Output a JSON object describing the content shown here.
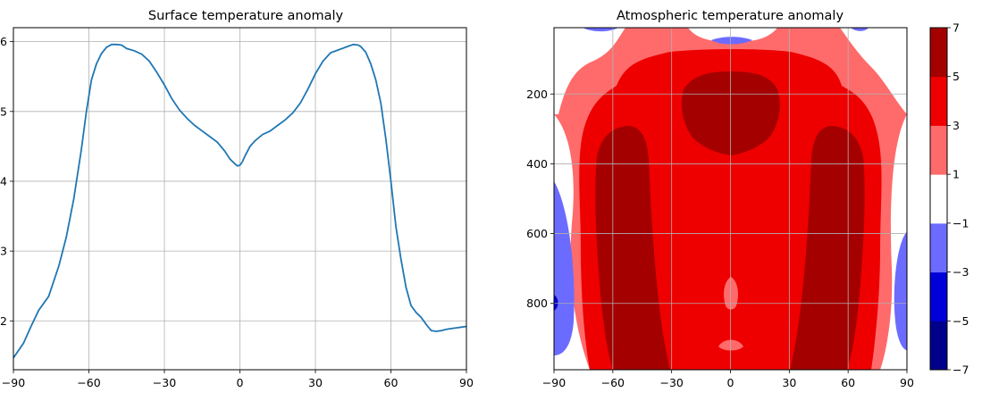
{
  "chart_data": [
    {
      "type": "line",
      "title": "Surface temperature anomaly",
      "xlabel": "",
      "ylabel": "",
      "xlim": [
        -90,
        90
      ],
      "ylim": [
        1.3,
        6.2
      ],
      "xticks": [
        -90,
        -60,
        -30,
        0,
        30,
        60,
        90
      ],
      "xtick_labels": [
        "−90",
        "−60",
        "−30",
        "0",
        "30",
        "60",
        "90"
      ],
      "yticks": [
        2,
        3,
        4,
        5,
        6
      ],
      "ytick_labels": [
        "2",
        "3",
        "4",
        "5",
        "6"
      ],
      "grid": true,
      "line_color": "#1f77b4",
      "series": [
        {
          "x": [
            -90,
            -86,
            -83,
            -80,
            -76,
            -72,
            -69,
            -66,
            -63,
            -61,
            -59,
            -57,
            -55,
            -53,
            -51,
            -49,
            -47,
            -45,
            -42,
            -39,
            -36,
            -33,
            -30,
            -27,
            -24,
            -21,
            -18,
            -15,
            -12,
            -9,
            -6,
            -4,
            -2,
            -1,
            0,
            1,
            2,
            4,
            6,
            9,
            12,
            15,
            18,
            21,
            24,
            27,
            30,
            33,
            36,
            39,
            42,
            45,
            47,
            48,
            50,
            52,
            54,
            56,
            58,
            60,
            62,
            64,
            66,
            68,
            70,
            72,
            74,
            76,
            78,
            80,
            82,
            84,
            86,
            88,
            90
          ],
          "y": [
            1.47,
            1.68,
            1.92,
            2.15,
            2.35,
            2.78,
            3.2,
            3.75,
            4.45,
            5.0,
            5.45,
            5.68,
            5.83,
            5.92,
            5.96,
            5.96,
            5.95,
            5.9,
            5.87,
            5.82,
            5.72,
            5.56,
            5.38,
            5.18,
            5.02,
            4.9,
            4.8,
            4.72,
            4.64,
            4.56,
            4.43,
            4.32,
            4.25,
            4.22,
            4.23,
            4.28,
            4.36,
            4.5,
            4.58,
            4.67,
            4.72,
            4.8,
            4.88,
            4.98,
            5.12,
            5.32,
            5.54,
            5.72,
            5.84,
            5.88,
            5.92,
            5.96,
            5.95,
            5.93,
            5.85,
            5.68,
            5.45,
            5.12,
            4.6,
            4.0,
            3.35,
            2.88,
            2.48,
            2.22,
            2.12,
            2.05,
            1.95,
            1.86,
            1.85,
            1.86,
            1.88,
            1.89,
            1.9,
            1.91,
            1.92
          ]
        }
      ]
    },
    {
      "type": "heatmap",
      "subtype": "filled_contour",
      "title": "Atmospheric temperature anomaly",
      "xlabel": "",
      "ylabel": "",
      "xlim": [
        -90,
        90
      ],
      "ylim": [
        1000,
        0
      ],
      "y_inverted": true,
      "xticks": [
        -90,
        -60,
        -30,
        0,
        30,
        60,
        90
      ],
      "xtick_labels": [
        "−90",
        "−60",
        "−30",
        "0",
        "30",
        "60",
        "90"
      ],
      "yticks": [
        200,
        400,
        600,
        800
      ],
      "ytick_labels": [
        "200",
        "400",
        "600",
        "800"
      ],
      "grid": true,
      "colorbar": {
        "levels": [
          -7,
          -5,
          -3,
          -1,
          1,
          3,
          5,
          7
        ],
        "labels": [
          "−7",
          "−5",
          "−3",
          "−1",
          "1",
          "3",
          "5",
          "7"
        ],
        "colors": [
          "#00008b",
          "#0000d8",
          "#6b6bff",
          "#ffffff",
          "#ff6b6b",
          "#ee0000",
          "#a50000"
        ]
      },
      "regions": [
        {
          "level": "1 to 3",
          "x": [
            -90,
            90
          ],
          "p": [
            15,
            990
          ]
        },
        {
          "level": "3 to 5",
          "x": [
            -73,
            73
          ],
          "p": [
            60,
            990
          ]
        },
        {
          "level": ">5",
          "x": [
            -17,
            17
          ],
          "p": [
            85,
            335
          ]
        },
        {
          "level": ">5",
          "x": [
            -66,
            -43
          ],
          "p": [
            285,
            990
          ]
        },
        {
          "level": ">5",
          "x": [
            43,
            66
          ],
          "p": [
            285,
            990
          ]
        },
        {
          "level": "-1 to 1",
          "x": [
            -90,
            -76
          ],
          "p": [
            20,
            640
          ]
        },
        {
          "level": "-1 to 1",
          "x": [
            76,
            90
          ],
          "p": [
            20,
            640
          ]
        },
        {
          "level": "-3 to -1",
          "x": [
            -90,
            -80
          ],
          "p": [
            440,
            950
          ]
        },
        {
          "level": "-3 to -1",
          "x": [
            80,
            90
          ],
          "p": [
            590,
            940
          ]
        },
        {
          "level": "-5 to -3",
          "x": [
            -90,
            -88
          ],
          "p": [
            770,
            810
          ]
        }
      ]
    }
  ]
}
